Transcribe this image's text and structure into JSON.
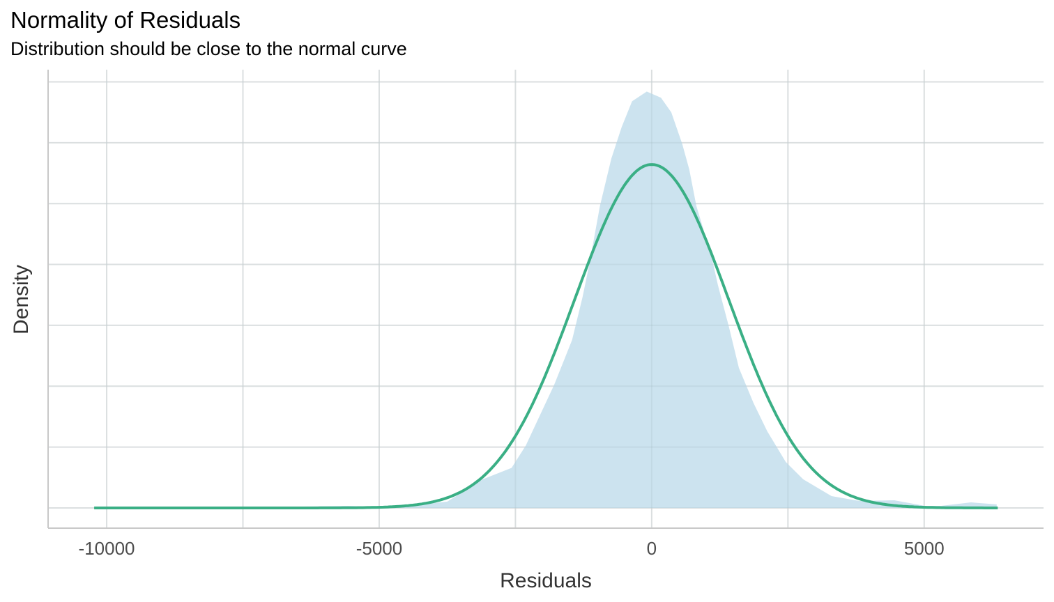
{
  "chart_data": {
    "type": "area",
    "title": "Normality of Residuals",
    "subtitle": "Distribution should be close to the normal curve",
    "xlabel": "Residuals",
    "ylabel": "Density",
    "xlim": [
      -11075,
      7190
    ],
    "ylim": [
      -1.66e-05,
      0.00036
    ],
    "x_ticks": [
      -10000,
      -5000,
      0,
      5000
    ],
    "x_tick_labels": [
      "-10000",
      "-5000",
      "0",
      "5000"
    ],
    "x_minor_grid": [
      -7500,
      -2500,
      2500
    ],
    "y_grid": [
      0,
      5e-05,
      0.0001,
      0.00015,
      0.0002,
      0.00025,
      0.0003,
      0.00035
    ],
    "y_tick_labels_shown": false,
    "grid": true,
    "series": [
      {
        "type": "density-area",
        "color": "#cce3ef",
        "x": [
          -10230,
          -6590,
          -5560,
          -4800,
          -3750,
          -3100,
          -2570,
          -2310,
          -1790,
          -1460,
          -1270,
          -1140,
          -950,
          -740,
          -550,
          -360,
          -90,
          170,
          360,
          560,
          690,
          820,
          1090,
          1215,
          1410,
          1600,
          1870,
          2120,
          2460,
          2780,
          3300,
          3810,
          4450,
          5010,
          5310,
          5860,
          6330
        ],
        "y": [
          0,
          1e-06,
          1.7e-06,
          5e-07,
          5.2e-06,
          2.35e-05,
          3.29e-05,
          5.13e-05,
          0.000101,
          0.000138,
          0.000173,
          0.000201,
          0.000248,
          0.000287,
          0.000313,
          0.000334,
          0.000342,
          0.000337,
          0.000325,
          0.000299,
          0.000278,
          0.000248,
          0.000208,
          0.000183,
          0.00015,
          0.000115,
          8.6e-05,
          6.3e-05,
          3.78e-05,
          2.35e-05,
          9.7e-06,
          5.7e-06,
          6.3e-06,
          1.7e-06,
          1.7e-06,
          4.6e-06,
          2.9e-06
        ]
      },
      {
        "type": "normal-curve",
        "color": "#3aaf85",
        "mean": 0,
        "sd": 1414,
        "x_range": [
          -10230,
          6350
        ]
      }
    ]
  },
  "colors": {
    "grid": "#ebebeb",
    "axis": "#c8c8c8"
  }
}
